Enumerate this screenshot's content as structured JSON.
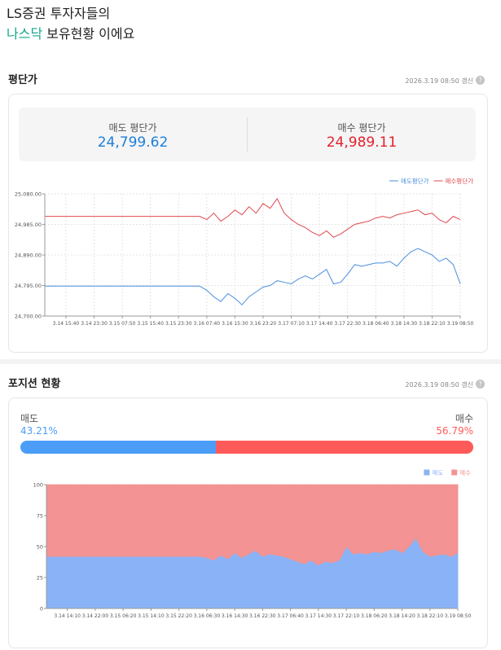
{
  "header": {
    "title_line1": "LS증권 투자자들의",
    "title_highlight": "나스닥",
    "title_rest": "보유현황 이에요"
  },
  "price_section": {
    "title": "평단가",
    "updated": "2026.3.19 08:50 갱신",
    "help": "?",
    "sell_label": "매도 평단가",
    "sell_value": "24,799.62",
    "buy_label": "매수 평단가",
    "buy_value": "24,989.11"
  },
  "price_chart": {
    "type": "line",
    "grid": true,
    "categories": [
      null,
      null,
      null,
      "3.14 15:40",
      null,
      null,
      null,
      "3.14 23:30",
      null,
      null,
      null,
      "3.15 07:50",
      null,
      null,
      null,
      "3.15 15:40",
      null,
      null,
      null,
      "3.15 23:30",
      null,
      null,
      null,
      "3.16 07:40",
      null,
      null,
      null,
      "3.16 15:30",
      null,
      null,
      null,
      "3.16 23:20",
      null,
      null,
      null,
      "3.17 07:10",
      null,
      null,
      null,
      "3.17 14:40",
      null,
      null,
      null,
      "3.17 22:30",
      null,
      null,
      null,
      "3.18 06:40",
      null,
      null,
      null,
      "3.18 14:30",
      null,
      null,
      null,
      "3.18 22:10",
      null,
      null,
      null,
      "3.19 08:50"
    ],
    "ylim": [
      24700,
      25080
    ],
    "yticks": [
      {
        "value": 24700,
        "label": "24,700.00"
      },
      {
        "value": 24795,
        "label": "24,795.00"
      },
      {
        "value": 24890,
        "label": "24,890.00"
      },
      {
        "value": 24985,
        "label": "24,985.00"
      },
      {
        "value": 25080,
        "label": "25,080.00"
      }
    ],
    "series": [
      {
        "name": "매도평단가",
        "color": "#4a8fe0",
        "values": [
          24793,
          24793,
          24793,
          24793,
          24793,
          24793,
          24793,
          24793,
          24793,
          24793,
          24793,
          24793,
          24793,
          24793,
          24793,
          24793,
          24793,
          24793,
          24793,
          24793,
          24793,
          24793,
          24793,
          24780,
          24760,
          24745,
          24770,
          24755,
          24735,
          24760,
          24775,
          24790,
          24795,
          24810,
          24805,
          24800,
          24815,
          24825,
          24815,
          24830,
          24845,
          24800,
          24805,
          24830,
          24860,
          24855,
          24860,
          24865,
          24865,
          24870,
          24855,
          24880,
          24900,
          24910,
          24900,
          24890,
          24870,
          24880,
          24860,
          24800
        ]
      },
      {
        "name": "매수평단가",
        "color": "#e0474c",
        "values": [
          25010,
          25010,
          25010,
          25010,
          25010,
          25010,
          25010,
          25010,
          25010,
          25010,
          25010,
          25010,
          25010,
          25010,
          25010,
          25010,
          25010,
          25010,
          25010,
          25010,
          25010,
          25010,
          25010,
          25000,
          25020,
          24995,
          25010,
          25030,
          25015,
          25040,
          25020,
          25050,
          25035,
          25065,
          25020,
          25000,
          24985,
          24975,
          24960,
          24950,
          24965,
          24945,
          24955,
          24970,
          24985,
          24990,
          24995,
          25005,
          25010,
          25005,
          25015,
          25020,
          25025,
          25030,
          25015,
          25020,
          25000,
          24990,
          25010,
          25000
        ]
      }
    ]
  },
  "position_section": {
    "title": "포지션 현황",
    "updated": "2026.3.19 08:50 갱신",
    "help": "?",
    "names": [
      "매도",
      "매수"
    ],
    "colors": [
      "#4b9df8",
      "#ff5a5a"
    ],
    "values": [
      43.21,
      56.79
    ],
    "value_labels": [
      "43.21%",
      "56.79%"
    ]
  },
  "position_chart": {
    "type": "area",
    "grid": true,
    "categories": [
      null,
      null,
      null,
      "3.14 14:10",
      null,
      null,
      null,
      "3.14 22:00",
      null,
      null,
      null,
      "3.15 06:20",
      null,
      null,
      null,
      "3.15 14:10",
      null,
      null,
      null,
      "3.15 22:20",
      null,
      null,
      null,
      "3.16 06:30",
      null,
      null,
      null,
      "3.16 14:30",
      null,
      null,
      null,
      "3.16 22:30",
      null,
      null,
      null,
      "3.17 06:40",
      null,
      null,
      null,
      "3.17 14:30",
      null,
      null,
      null,
      "3.17 22:10",
      null,
      null,
      null,
      "3.18 06:20",
      null,
      null,
      null,
      "3.18 14:20",
      null,
      null,
      null,
      "3.18 22:10",
      null,
      null,
      null,
      "3.19 08:50"
    ],
    "ylim": [
      0,
      100
    ],
    "yticks": [
      0,
      25,
      50,
      75,
      100
    ],
    "series": [
      {
        "name": "매도",
        "color": "#8ab2f6",
        "values": [
          42,
          42,
          42,
          42,
          42,
          42,
          42,
          42,
          42,
          42,
          42,
          42,
          42,
          42,
          42,
          42,
          42,
          42,
          42,
          42,
          42,
          42,
          42,
          41,
          39,
          43,
          40,
          45,
          41,
          44,
          47,
          42,
          44,
          43,
          42,
          40,
          38,
          36,
          39,
          35,
          38,
          37,
          39,
          50,
          44,
          45,
          44,
          46,
          45,
          47,
          48,
          45,
          50,
          57,
          46,
          42,
          43,
          44,
          42,
          45
        ]
      },
      {
        "name": "매수",
        "color": "#f39393",
        "values": [
          58,
          58,
          58,
          58,
          58,
          58,
          58,
          58,
          58,
          58,
          58,
          58,
          58,
          58,
          58,
          58,
          58,
          58,
          58,
          58,
          58,
          58,
          58,
          59,
          61,
          57,
          60,
          55,
          59,
          56,
          53,
          58,
          56,
          57,
          58,
          60,
          62,
          64,
          61,
          65,
          62,
          63,
          61,
          50,
          56,
          55,
          56,
          54,
          55,
          53,
          52,
          55,
          50,
          43,
          54,
          58,
          57,
          56,
          58,
          55
        ]
      }
    ]
  }
}
